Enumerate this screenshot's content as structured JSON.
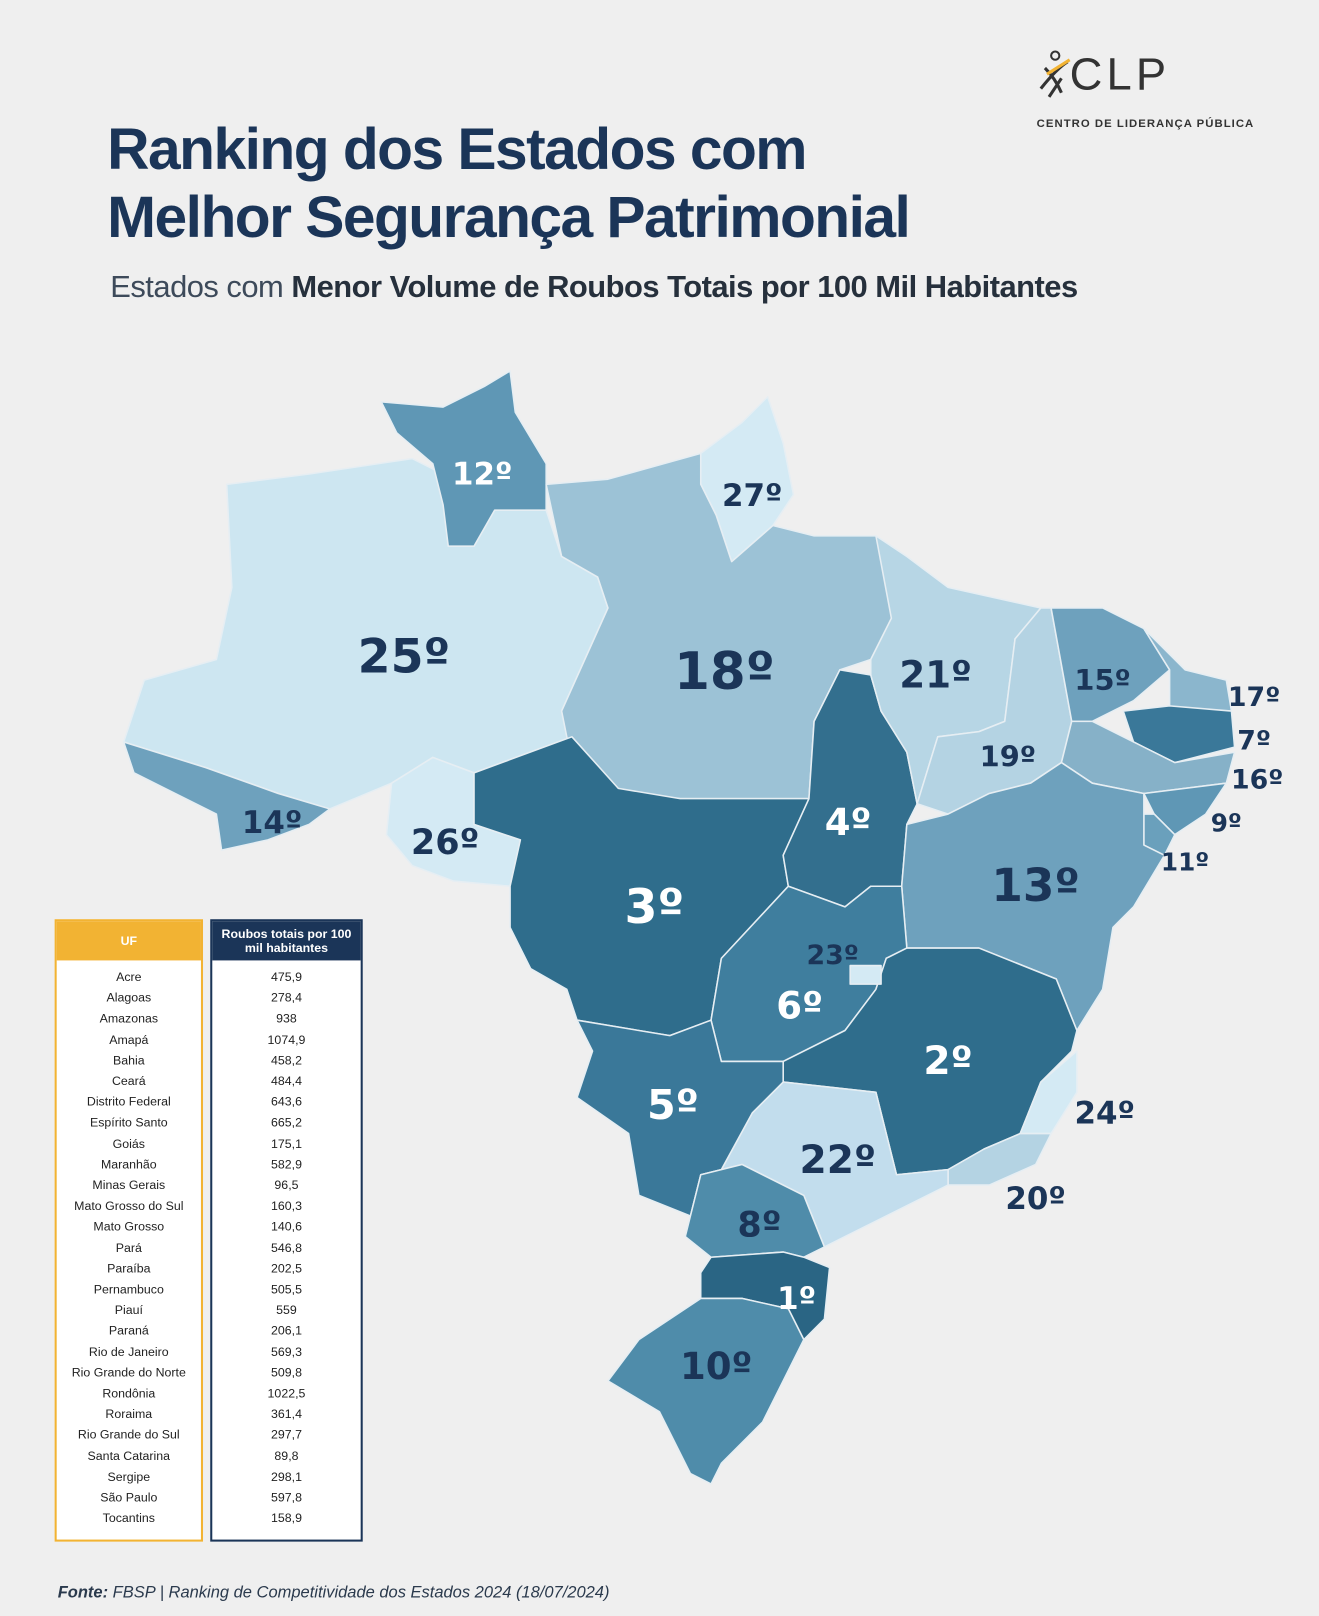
{
  "logo": {
    "mark": "CLP",
    "caption": "CENTRO DE LIDERANÇA PÚBLICA"
  },
  "title": [
    "Ranking dos Estados com",
    "Melhor Segurança Patrimonial"
  ],
  "subtitle": {
    "lead": "Estados com",
    "emphasis": "Menor Volume de Roubos Totais por 100 Mil Habitantes"
  },
  "map": {
    "labels": [
      "12º",
      "27º",
      "25º",
      "18º",
      "21º",
      "15º",
      "17º",
      "7º",
      "16º",
      "19º",
      "4º",
      "14º",
      "26º",
      "9º",
      "11º",
      "13º",
      "3º",
      "23º",
      "6º",
      "2º",
      "5º",
      "24º",
      "22º",
      "20º",
      "8º",
      "1º",
      "10º"
    ]
  },
  "table": {
    "headers": [
      "UF",
      "Roubos totais por 100 mil habitantes"
    ],
    "rows": [
      [
        "Acre",
        "475,9"
      ],
      [
        "Alagoas",
        "278,4"
      ],
      [
        "Amazonas",
        "938"
      ],
      [
        "Amapá",
        "1074,9"
      ],
      [
        "Bahia",
        "458,2"
      ],
      [
        "Ceará",
        "484,4"
      ],
      [
        "Distrito Federal",
        "643,6"
      ],
      [
        "Espírito Santo",
        "665,2"
      ],
      [
        "Goiás",
        "175,1"
      ],
      [
        "Maranhão",
        "582,9"
      ],
      [
        "Minas Gerais",
        "96,5"
      ],
      [
        "Mato Grosso do Sul",
        "160,3"
      ],
      [
        "Mato Grosso",
        "140,6"
      ],
      [
        "Pará",
        "546,8"
      ],
      [
        "Paraíba",
        "202,5"
      ],
      [
        "Pernambuco",
        "505,5"
      ],
      [
        "Piauí",
        "559"
      ],
      [
        "Paraná",
        "206,1"
      ],
      [
        "Rio de Janeiro",
        "569,3"
      ],
      [
        "Rio Grande do Norte",
        "509,8"
      ],
      [
        "Rondônia",
        "1022,5"
      ],
      [
        "Roraima",
        "361,4"
      ],
      [
        "Rio Grande do Sul",
        "297,7"
      ],
      [
        "Santa Catarina",
        "89,8"
      ],
      [
        "Sergipe",
        "298,1"
      ],
      [
        "São Paulo",
        "597,8"
      ],
      [
        "Tocantins",
        "158,9"
      ]
    ]
  },
  "source": {
    "label": "Fonte:",
    "text": "FBSP | Ranking de Competitividade dos Estados 2024 (18/07/2024)"
  }
}
